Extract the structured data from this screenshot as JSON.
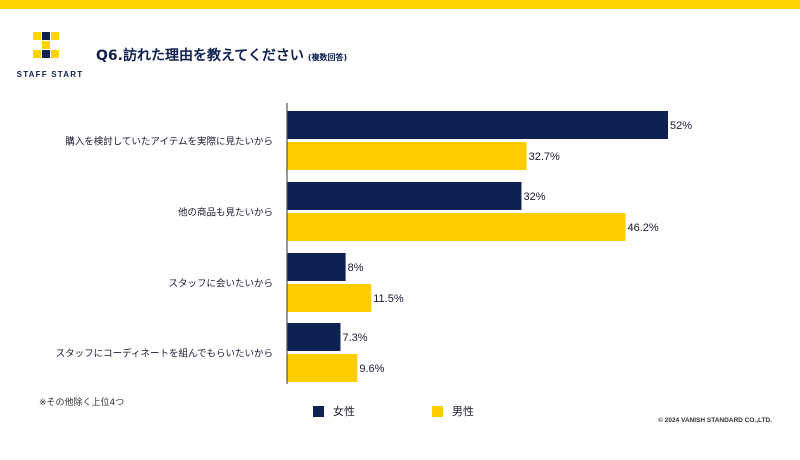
{
  "brand": {
    "name": "STAFF START"
  },
  "header": {
    "title": "Q6.訪れた理由を教えてください",
    "title_note": "(複数回答)"
  },
  "colors": {
    "accent": "#ffd400",
    "female": "#0f2150",
    "male": "#ffcc00",
    "axis": "#555555"
  },
  "chart_data": {
    "type": "bar",
    "orientation": "horizontal",
    "categories": [
      "購入を検討していたアイテムを実際に見たいから",
      "他の商品も見たいから",
      "スタッフに会いたいから",
      "スタッフにコーディネートを組んでもらいたいから"
    ],
    "series": [
      {
        "name": "女性",
        "values": [
          52,
          32,
          8,
          7.3
        ],
        "labels": [
          "52%",
          "32%",
          "8%",
          "7.3%"
        ]
      },
      {
        "name": "男性",
        "values": [
          32.7,
          46.2,
          11.5,
          9.6
        ],
        "labels": [
          "32.7%",
          "46.2%",
          "11.5%",
          "9.6%"
        ]
      }
    ],
    "xlim": [
      0,
      52
    ],
    "grid": false,
    "legend_position": "bottom"
  },
  "footnote": "※その他除く上位4つ",
  "legend": {
    "female": "女性",
    "male": "男性"
  },
  "copyright": "© 2024 VANISH STANDARD CO.,LTD."
}
